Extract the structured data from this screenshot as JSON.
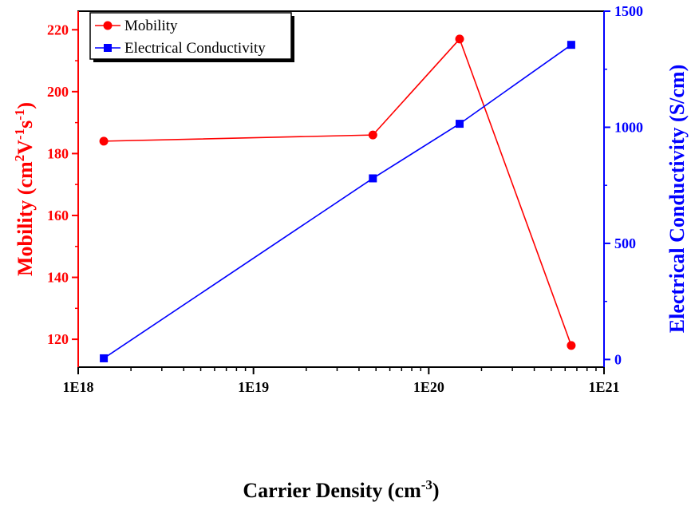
{
  "chart_data": {
    "type": "line",
    "x_scale": "log",
    "xlim": [
      1e+18,
      1e+21
    ],
    "x_ticks": [
      1e+18,
      1e+19,
      1e+20,
      1e+21
    ],
    "x_tick_labels": [
      "1E18",
      "1E19",
      "1E20",
      "1E21"
    ],
    "x_minor_ticks": true,
    "xlabel": {
      "base": "Carrier Density (cm",
      "sup": "-3",
      "end": ")"
    },
    "ylabel_left": {
      "parts": [
        {
          "t": "Mobility (cm",
          "sup": false
        },
        {
          "t": "2",
          "sup": true
        },
        {
          "t": "V",
          "sup": false
        },
        {
          "t": "-1",
          "sup": true
        },
        {
          "t": "s",
          "sup": false
        },
        {
          "t": "-1",
          "sup": true
        },
        {
          "t": ")",
          "sup": false
        }
      ]
    },
    "ylabel_right": "Electrical Conductivity (S/cm)",
    "ylim_left": [
      111,
      226
    ],
    "ylim_right": [
      -33,
      1500
    ],
    "y_left_ticks": [
      120,
      140,
      160,
      180,
      200,
      220
    ],
    "y_right_ticks": [
      0,
      500,
      1000,
      1500
    ],
    "grid": false,
    "legend_position": "top-left",
    "series": [
      {
        "name": "Mobility",
        "axis": "left",
        "color": "#ff0000",
        "marker": "circle",
        "x": [
          1.4e+18,
          4.8e+19,
          1.5e+20,
          6.5e+20
        ],
        "y": [
          184,
          186,
          217,
          118
        ]
      },
      {
        "name": "Electrical Conductivity",
        "axis": "right",
        "color": "#0000ff",
        "marker": "square",
        "x": [
          1.4e+18,
          4.8e+19,
          1.5e+20,
          6.5e+20
        ],
        "y": [
          5,
          780,
          1015,
          1355
        ]
      }
    ]
  }
}
